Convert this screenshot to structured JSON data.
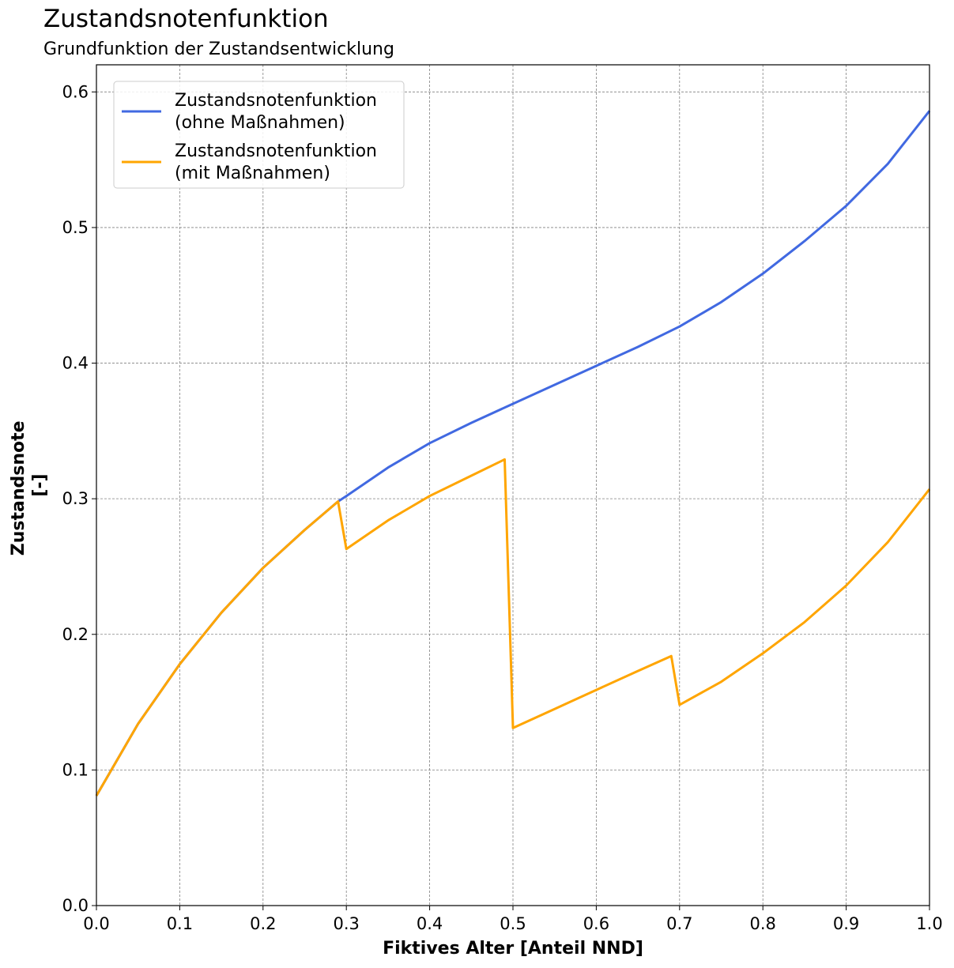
{
  "title": "Zustandsnotenfunktion",
  "subtitle": "Grundfunktion der Zustandsentwicklung",
  "chart_data": {
    "type": "line",
    "xlabel": "Fiktives Alter [Anteil NND]",
    "ylabel_line1": "Zustandsnote",
    "ylabel_line2": "[-]",
    "xlim": [
      0.0,
      1.0
    ],
    "ylim": [
      0.0,
      0.62
    ],
    "xticks": [
      "0.0",
      "0.1",
      "0.2",
      "0.3",
      "0.4",
      "0.5",
      "0.6",
      "0.7",
      "0.8",
      "0.9",
      "1.0"
    ],
    "yticks": [
      "0.0",
      "0.1",
      "0.2",
      "0.3",
      "0.4",
      "0.5",
      "0.6"
    ],
    "grid": true,
    "legend_position": "top-left",
    "series": [
      {
        "name_line1": "Zustandsnotenfunktion",
        "name_line2": "(ohne Maßnahmen)",
        "color": "#4169E1",
        "x": [
          0.0,
          0.05,
          0.1,
          0.15,
          0.2,
          0.25,
          0.29,
          0.3,
          0.35,
          0.4,
          0.45,
          0.5,
          0.55,
          0.6,
          0.65,
          0.7,
          0.75,
          0.8,
          0.85,
          0.9,
          0.95,
          1.0
        ],
        "y": [
          0.081,
          0.134,
          0.178,
          0.216,
          0.249,
          0.277,
          0.298,
          0.302,
          0.323,
          0.341,
          0.356,
          0.37,
          0.384,
          0.398,
          0.412,
          0.427,
          0.445,
          0.466,
          0.49,
          0.516,
          0.547,
          0.586
        ]
      },
      {
        "name_line1": "Zustandsnotenfunktion",
        "name_line2": "(mit Maßnahmen)",
        "color": "#FFA500",
        "x": [
          0.0,
          0.05,
          0.1,
          0.15,
          0.2,
          0.25,
          0.29,
          0.3,
          0.35,
          0.4,
          0.45,
          0.49,
          0.5,
          0.55,
          0.6,
          0.65,
          0.69,
          0.7,
          0.75,
          0.8,
          0.85,
          0.9,
          0.95,
          1.0
        ],
        "y": [
          0.081,
          0.134,
          0.178,
          0.216,
          0.249,
          0.277,
          0.298,
          0.263,
          0.284,
          0.302,
          0.317,
          0.329,
          0.131,
          0.145,
          0.159,
          0.173,
          0.184,
          0.148,
          0.165,
          0.186,
          0.209,
          0.236,
          0.268,
          0.307
        ]
      }
    ]
  }
}
